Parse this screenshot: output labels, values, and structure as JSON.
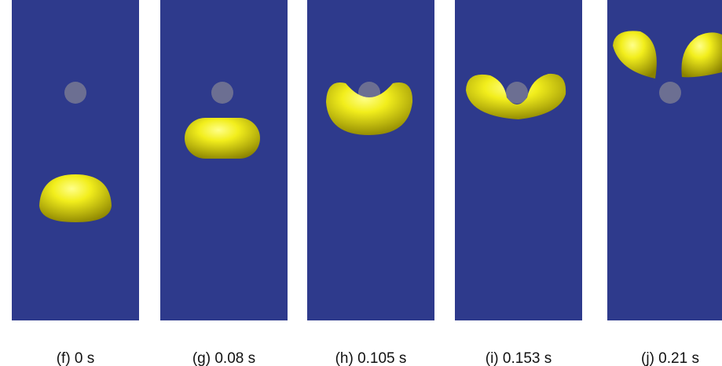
{
  "panels": [
    {
      "label": "(f) 0 s"
    },
    {
      "label": "(g) 0.08 s"
    },
    {
      "label": "(h) 0.105 s"
    },
    {
      "label": "(i) 0.153 s"
    },
    {
      "label": "(j) 0.21 s"
    }
  ]
}
